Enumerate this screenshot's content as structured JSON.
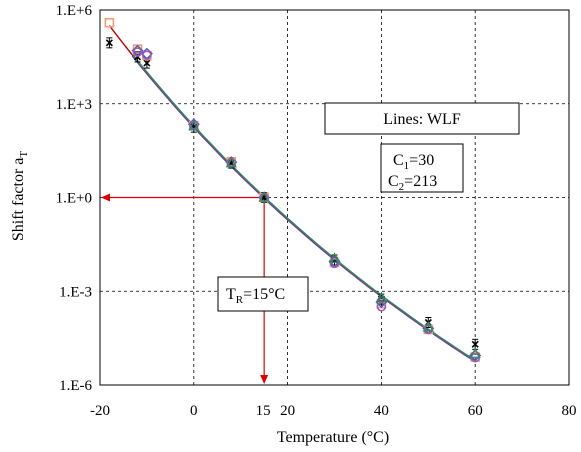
{
  "chart_data": {
    "type": "scatter",
    "ylabel": "Shift factor a",
    "ylabel_sub": "T",
    "xlabel": "Temperature  (°C)",
    "y_scale": "log10",
    "xlim": [
      -20,
      80
    ],
    "ylim": [
      1e-06,
      1000000.0
    ],
    "x_ticks": [
      -20,
      0,
      20,
      40,
      60,
      80
    ],
    "x_tick_labels": [
      "-20",
      "0",
      "20",
      "40",
      "60",
      "80"
    ],
    "y_ticks": [
      1e-06,
      0.001,
      1,
      1000.0,
      1000000.0
    ],
    "y_tick_labels": [
      "1.E-6",
      "1.E-3",
      "1.E+0",
      "1.E+3",
      "1.E+6"
    ],
    "grid": "dashed",
    "reference_temperature": 15,
    "reference_label": "15",
    "colors": {
      "arrow": "#e00000",
      "reference_tick": "#e00000",
      "fit_lines": [
        "#c00000",
        "#3a4aa8",
        "#7a3a9a",
        "#2e8b57"
      ]
    },
    "fit": {
      "label": "Lines:  WLF",
      "C1_label": "C",
      "C1_sub": "1",
      "C1_value": "=30",
      "C2_label": "C",
      "C2_sub": "2",
      "C2_value": "=213",
      "C1": 30,
      "C2": 213,
      "Tref": 15
    },
    "tr_annotation": {
      "prefix": "T",
      "sub": "R",
      "suffix": "=15°C"
    },
    "series": [
      {
        "marker": "x-errorbar",
        "color": "#000000",
        "points": [
          [
            -18,
            89000
          ],
          [
            -12,
            31600
          ],
          [
            -10,
            20000
          ],
          [
            0,
            178
          ],
          [
            8,
            12.6
          ],
          [
            15,
            1
          ],
          [
            30,
            0.01
          ],
          [
            40,
            0.00056
          ],
          [
            50,
            0.0001
          ],
          [
            60,
            2e-05
          ]
        ]
      },
      {
        "marker": "square",
        "color": "#f0a070",
        "points": [
          [
            -18,
            390000
          ],
          [
            -12,
            56000
          ],
          [
            -10,
            35000
          ],
          [
            0,
            200
          ],
          [
            8,
            14
          ],
          [
            15,
            1
          ],
          [
            30,
            0.0083
          ],
          [
            40,
            0.0004
          ],
          [
            50,
            6e-05
          ],
          [
            60,
            7.9e-06
          ]
        ]
      },
      {
        "marker": "diamond",
        "color": "#4a5ab8",
        "points": [
          [
            -12,
            50000
          ],
          [
            -10,
            40000
          ],
          [
            0,
            220
          ],
          [
            8,
            13.5
          ],
          [
            15,
            1
          ],
          [
            30,
            0.009
          ],
          [
            40,
            0.00045
          ],
          [
            50,
            6.5e-05
          ],
          [
            60,
            8.9e-06
          ]
        ]
      },
      {
        "marker": "circle",
        "color": "#9a5ac0",
        "points": [
          [
            -12,
            45000
          ],
          [
            -10,
            36000
          ],
          [
            0,
            205
          ],
          [
            8,
            13
          ],
          [
            15,
            1
          ],
          [
            30,
            0.0078
          ],
          [
            40,
            0.00032
          ],
          [
            50,
            6e-05
          ],
          [
            60,
            7.5e-06
          ]
        ]
      },
      {
        "marker": "triangle",
        "color": "#2e8b57",
        "points": [
          [
            0,
            190
          ],
          [
            8,
            12.5
          ],
          [
            15,
            1
          ],
          [
            30,
            0.011
          ],
          [
            40,
            0.0006
          ],
          [
            50,
            7e-05
          ],
          [
            60,
            1e-05
          ]
        ]
      }
    ]
  }
}
